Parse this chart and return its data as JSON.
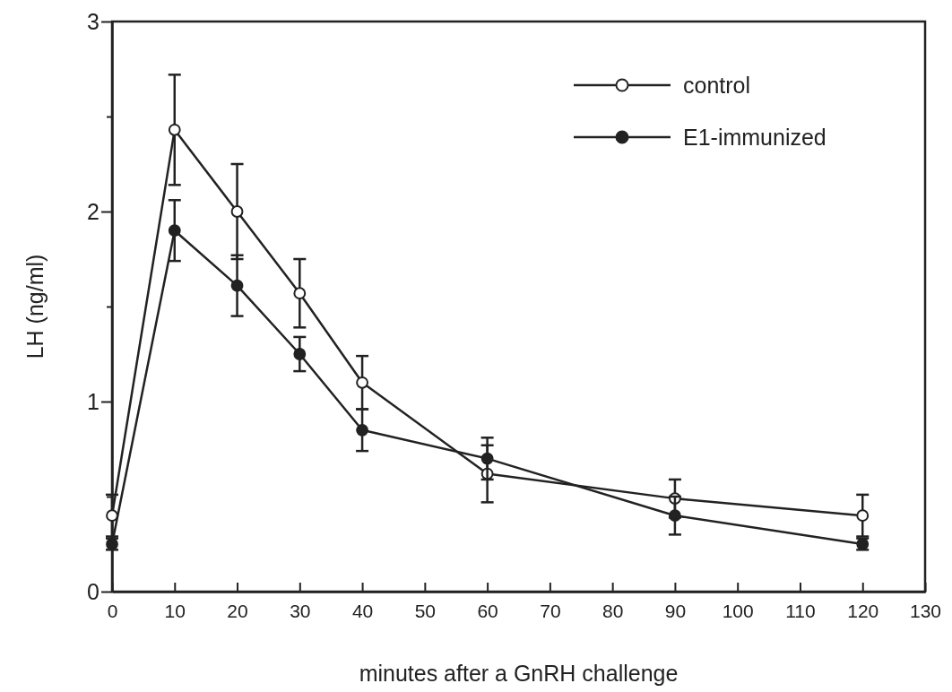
{
  "chart_data": {
    "type": "line",
    "xlabel": "minutes after a GnRH challenge",
    "ylabel": "LH (ng/ml)",
    "x": [
      0,
      10,
      20,
      30,
      40,
      60,
      90,
      120
    ],
    "xlim": [
      0,
      130
    ],
    "xticks": [
      0,
      10,
      20,
      30,
      40,
      50,
      60,
      70,
      80,
      90,
      100,
      110,
      120,
      130
    ],
    "ylim": [
      0,
      3
    ],
    "yticks": [
      0,
      {
        "value": 0.5,
        "label": null
      },
      1,
      {
        "value": 1.5,
        "label": null
      },
      2,
      {
        "value": 2.5,
        "label": null
      },
      3
    ],
    "series": [
      {
        "name": "control",
        "color": "#222222",
        "values": [
          0.4,
          2.43,
          2.0,
          1.57,
          1.1,
          0.62,
          0.49,
          0.4
        ],
        "errors": [
          0.11,
          0.29,
          0.25,
          0.18,
          0.14,
          0.15,
          0.1,
          0.11
        ]
      },
      {
        "name": "E1-immunized",
        "color": "#222222",
        "values": [
          0.25,
          1.9,
          1.61,
          1.25,
          0.85,
          0.7,
          0.4,
          0.25
        ],
        "errors": [
          0.03,
          0.16,
          0.16,
          0.09,
          0.11,
          0.11,
          0.1,
          0.03
        ]
      }
    ],
    "marker": "circle",
    "legend": "top right",
    "grid": false
  }
}
